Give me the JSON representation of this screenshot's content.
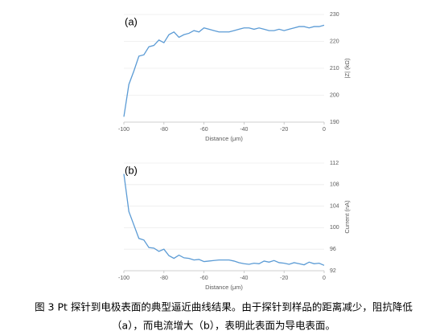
{
  "chart_data": [
    {
      "type": "line",
      "panel_label": "(a)",
      "x_label": "Distance (μm)",
      "y_label": "|Z| (kΩ)",
      "x": [
        -100,
        -97.5,
        -95,
        -92.5,
        -90,
        -87.5,
        -85,
        -82.5,
        -80,
        -77.5,
        -75,
        -72.5,
        -70,
        -67.5,
        -65,
        -62.5,
        -60,
        -57.5,
        -55,
        -52.5,
        -50,
        -47.5,
        -45,
        -42.5,
        -40,
        -37.5,
        -35,
        -32.5,
        -30,
        -27.5,
        -25,
        -22.5,
        -20,
        -17.5,
        -15,
        -12.5,
        -10,
        -7.5,
        -5,
        -2.5,
        0
      ],
      "series": [
        {
          "name": "|Z|",
          "color": "#5b9bd5",
          "values": [
            192,
            204,
            209,
            214.5,
            215,
            218,
            218.5,
            220.5,
            219.5,
            222.5,
            223.5,
            221.5,
            222.5,
            223,
            224,
            223.5,
            225,
            224.5,
            224,
            223.5,
            223.5,
            223.5,
            224,
            224.5,
            225,
            225,
            224.5,
            225,
            224.5,
            224,
            224,
            224.5,
            224,
            224.5,
            225,
            225.5,
            225.5,
            225,
            225.5,
            225.5,
            226
          ]
        }
      ],
      "xlim": [
        -100,
        0
      ],
      "xticks": [
        -100,
        -80,
        -60,
        -40,
        -20,
        0
      ],
      "ylim": [
        190,
        230
      ],
      "yticks": [
        190,
        200,
        210,
        220,
        230
      ],
      "grid": true
    },
    {
      "type": "line",
      "panel_label": "(b)",
      "x_label": "Distance (μm)",
      "y_label": "Current (nA)",
      "x": [
        -100,
        -97.5,
        -95,
        -92.5,
        -90,
        -87.5,
        -85,
        -82.5,
        -80,
        -77.5,
        -75,
        -72.5,
        -70,
        -67.5,
        -65,
        -62.5,
        -60,
        -57.5,
        -55,
        -52.5,
        -50,
        -47.5,
        -45,
        -42.5,
        -40,
        -37.5,
        -35,
        -32.5,
        -30,
        -27.5,
        -25,
        -22.5,
        -20,
        -17.5,
        -15,
        -12.5,
        -10,
        -7.5,
        -5,
        -2.5,
        0
      ],
      "series": [
        {
          "name": "Current",
          "color": "#5b9bd5",
          "values": [
            110,
            103,
            100.5,
            98,
            97.7,
            96.3,
            96.2,
            95.6,
            96,
            94.8,
            94.3,
            94.9,
            94.4,
            94.3,
            94,
            94.1,
            93.7,
            93.8,
            93.9,
            94,
            94,
            94,
            93.8,
            93.5,
            93.3,
            93.2,
            93.4,
            93.3,
            93.8,
            93.6,
            93.9,
            93.5,
            93.4,
            93.2,
            93.5,
            93.3,
            93.1,
            93.6,
            93.3,
            93.4,
            93
          ]
        }
      ],
      "xlim": [
        -100,
        0
      ],
      "xticks": [
        -100,
        -80,
        -60,
        -40,
        -20,
        0
      ],
      "ylim": [
        92,
        112
      ],
      "yticks": [
        92,
        96,
        100,
        104,
        108,
        112
      ],
      "grid": true
    }
  ],
  "caption": [
    "图 3 Pt 探针到电极表面的典型逼近曲线结果。由于探针到样品的距离减少，阻抗降低",
    "（a），而电流增大（b），表明此表面为导电表面。"
  ]
}
